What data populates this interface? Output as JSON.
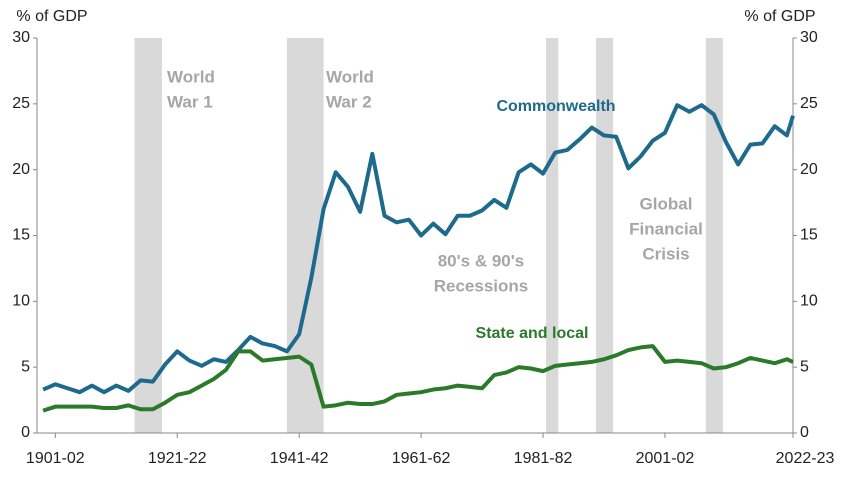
{
  "chart_data": {
    "type": "line",
    "y_label": "% of GDP",
    "y2_label": "% of GDP",
    "x": [
      1899,
      1901,
      1903,
      1905,
      1907,
      1909,
      1911,
      1913,
      1915,
      1917,
      1919,
      1921,
      1923,
      1925,
      1927,
      1929,
      1931,
      1933,
      1935,
      1937,
      1939,
      1941,
      1943,
      1945,
      1947,
      1949,
      1951,
      1953,
      1955,
      1957,
      1959,
      1961,
      1963,
      1965,
      1967,
      1969,
      1971,
      1973,
      1975,
      1977,
      1979,
      1981,
      1983,
      1985,
      1987,
      1989,
      1991,
      1993,
      1995,
      1997,
      1999,
      2001,
      2003,
      2005,
      2007,
      2009,
      2011,
      2013,
      2015,
      2017,
      2019,
      2021,
      2022
    ],
    "series": [
      {
        "name": "Commonwealth",
        "color": "#1d6a8c",
        "values": [
          3.3,
          3.7,
          3.4,
          3.1,
          3.6,
          3.1,
          3.6,
          3.2,
          4.0,
          3.9,
          5.2,
          6.2,
          5.5,
          5.1,
          5.6,
          5.4,
          6.3,
          7.3,
          6.8,
          6.6,
          6.2,
          7.5,
          11.8,
          17.0,
          19.8,
          18.7,
          16.8,
          21.2,
          16.5,
          16.0,
          16.2,
          15.0,
          15.9,
          15.1,
          16.5,
          16.5,
          16.9,
          17.7,
          17.1,
          19.8,
          20.4,
          19.7,
          21.3,
          21.5,
          22.3,
          23.2,
          22.6,
          22.5,
          20.1,
          21.0,
          22.2,
          22.8,
          24.9,
          24.4,
          24.9,
          24.2,
          22.1,
          20.4,
          21.9,
          22.0,
          23.3,
          22.6,
          24.1
        ]
      },
      {
        "name": "State and local",
        "color": "#2a7a2a",
        "values": [
          1.7,
          2.0,
          2.0,
          2.0,
          2.0,
          1.9,
          1.9,
          2.1,
          1.8,
          1.8,
          2.3,
          2.9,
          3.1,
          3.6,
          4.1,
          4.8,
          6.2,
          6.2,
          5.5,
          5.6,
          5.7,
          5.8,
          5.2,
          2.0,
          2.1,
          2.3,
          2.2,
          2.2,
          2.4,
          2.9,
          3.0,
          3.1,
          3.3,
          3.4,
          3.6,
          3.5,
          3.4,
          4.4,
          4.6,
          5.0,
          4.9,
          4.7,
          5.1,
          5.2,
          5.3,
          5.4,
          5.6,
          5.9,
          6.3,
          6.5,
          6.6,
          5.4,
          5.5,
          5.4,
          5.3,
          4.9,
          5.0,
          5.3,
          5.7,
          5.5,
          5.3,
          5.6,
          5.4
        ]
      }
    ],
    "xlim": [
      1898,
      2022
    ],
    "xticks": [
      {
        "value": 1901,
        "label": "1901-02"
      },
      {
        "value": 1921,
        "label": "1921-22"
      },
      {
        "value": 1941,
        "label": "1941-42"
      },
      {
        "value": 1961,
        "label": "1961-62"
      },
      {
        "value": 1981,
        "label": "1981-82"
      },
      {
        "value": 2001,
        "label": "2001-02"
      },
      {
        "value": 2022,
        "label": "2022-23"
      }
    ],
    "ylim": [
      0,
      30
    ],
    "yticks": [
      0,
      5,
      10,
      15,
      20,
      25,
      30
    ],
    "y2lim": [
      0,
      30
    ],
    "y2ticks": [
      0,
      5,
      10,
      15,
      20,
      25,
      30
    ],
    "shaded_periods": [
      [
        1914,
        1918.5
      ],
      [
        1939,
        1945
      ],
      [
        1981.5,
        1983.5
      ],
      [
        1989.7,
        1992.5
      ],
      [
        2007.7,
        2010.5
      ]
    ],
    "shade_color": "#d9d9d9",
    "annotations": [
      {
        "lines": [
          "World",
          "War 1"
        ]
      },
      {
        "lines": [
          "World",
          "War 2"
        ]
      },
      {
        "lines": [
          "80's & 90's",
          "Recessions"
        ]
      },
      {
        "lines": [
          "Global",
          "Financial",
          "Crisis"
        ]
      }
    ]
  }
}
